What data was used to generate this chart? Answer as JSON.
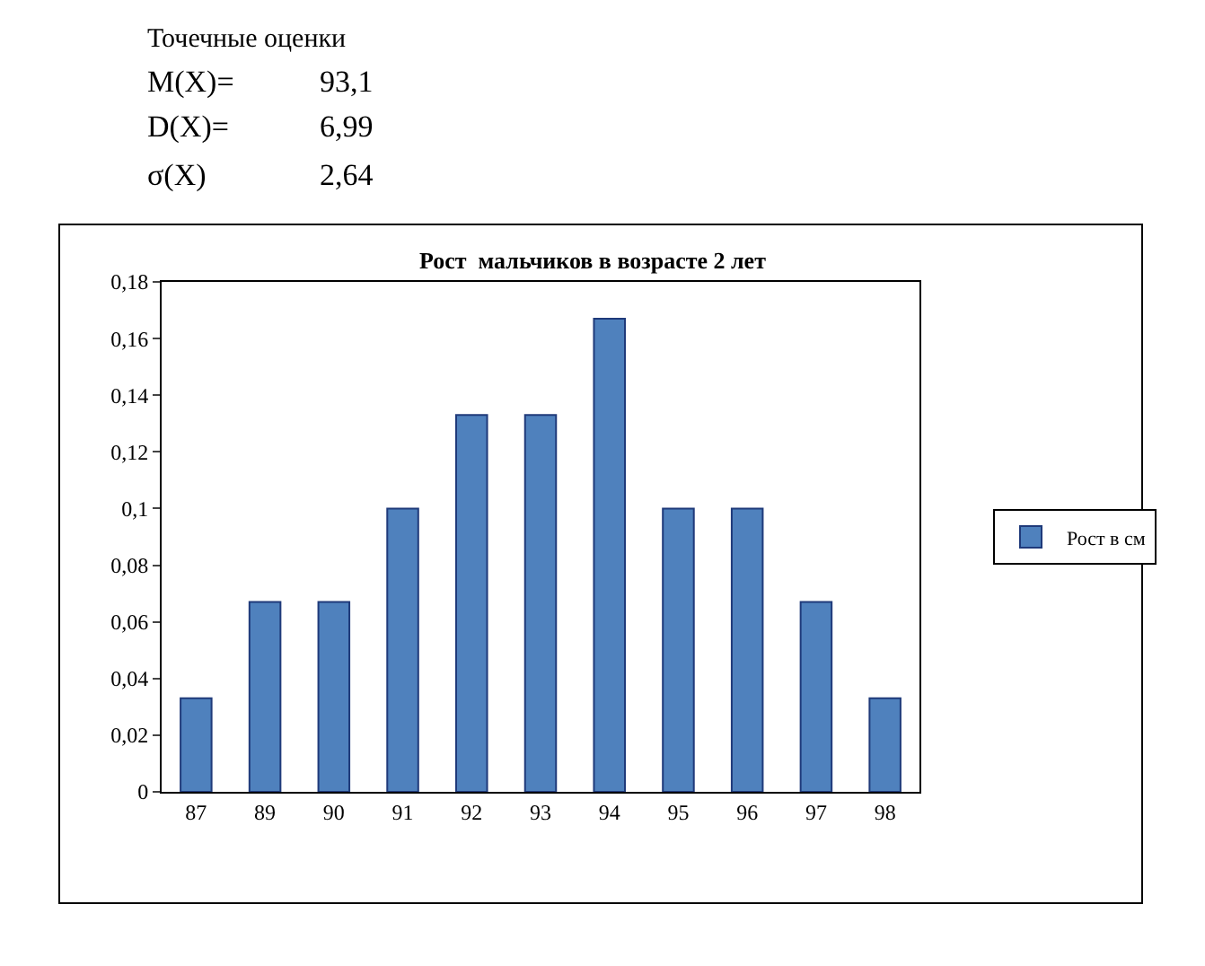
{
  "chart_data": {
    "type": "bar",
    "title": "Рост  мальчиков в возрасте 2 лет",
    "categories": [
      "87",
      "89",
      "90",
      "91",
      "92",
      "93",
      "94",
      "95",
      "96",
      "97",
      "98"
    ],
    "series": [
      {
        "name": "Рост в см",
        "color": "#4f81bd",
        "values": [
          0.033,
          0.067,
          0.067,
          0.1,
          0.133,
          0.133,
          0.167,
          0.1,
          0.1,
          0.067,
          0.033
        ]
      }
    ],
    "ylim": [
      0,
      0.18
    ],
    "yticks": [
      0,
      {
        "value": 0.02,
        "label": "0,02"
      },
      {
        "value": 0.04,
        "label": "0,04"
      },
      {
        "value": 0.06,
        "label": "0,06"
      },
      {
        "value": 0.08,
        "label": "0,08"
      },
      {
        "value": 0.1,
        "label": "0,1"
      },
      {
        "value": 0.12,
        "label": "0,12"
      },
      {
        "value": 0.14,
        "label": "0,14"
      },
      {
        "value": 0.16,
        "label": "0,16"
      },
      {
        "value": 0.18,
        "label": "0,18"
      }
    ],
    "grid": false,
    "legend": "right",
    "annotations": [
      "Точечные оценки",
      "M(X)=",
      "93,1",
      "D(X)=",
      "6,99",
      "σ(X)",
      "2,64"
    ]
  }
}
